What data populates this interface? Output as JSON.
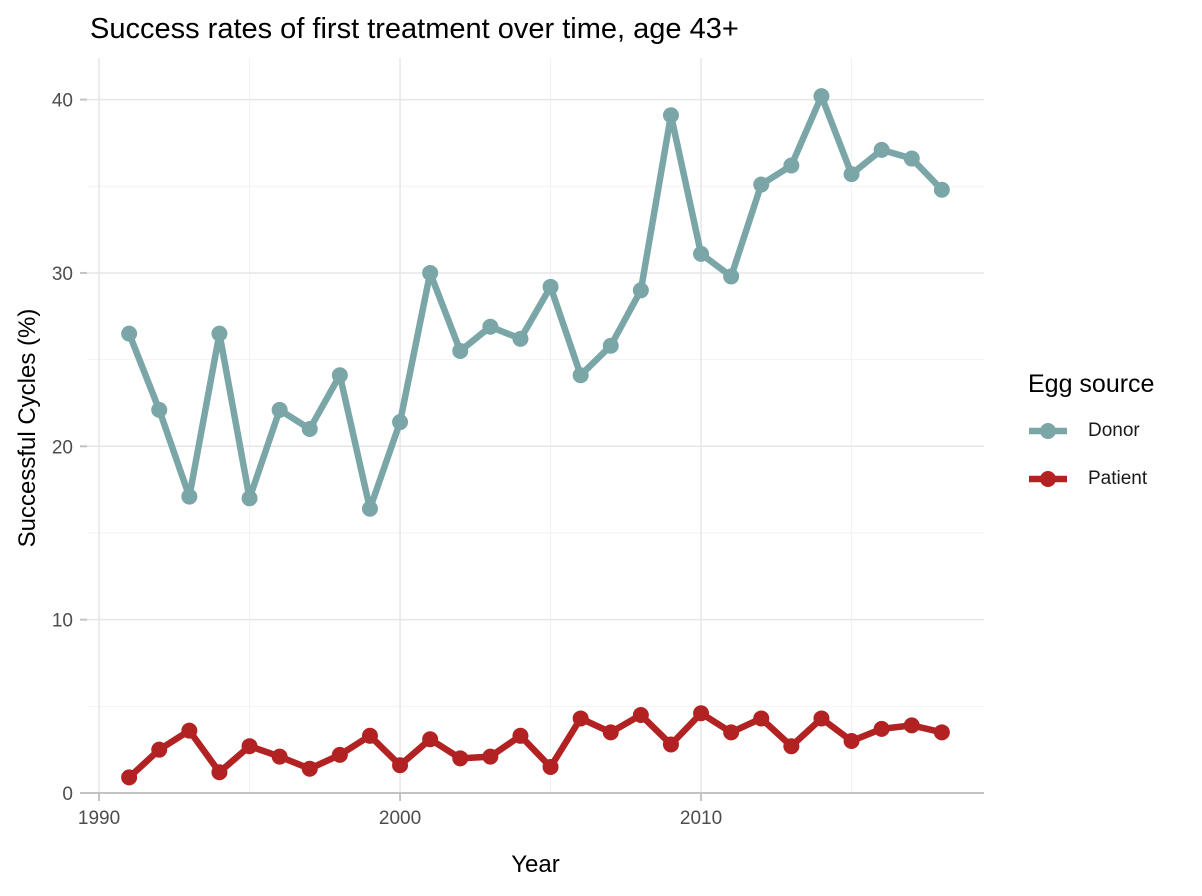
{
  "chart_data": {
    "type": "line",
    "title": "Success rates of first treatment over time, age 43+",
    "xlabel": "Year",
    "ylabel": "Successful Cycles (%)",
    "legend_title": "Egg source",
    "legend_position": "right",
    "grid_on": true,
    "x": [
      1991,
      1992,
      1993,
      1994,
      1995,
      1996,
      1997,
      1998,
      1999,
      2000,
      2001,
      2002,
      2003,
      2004,
      2005,
      2006,
      2007,
      2008,
      2009,
      2010,
      2011,
      2012,
      2013,
      2014,
      2015,
      2016,
      2017,
      2018
    ],
    "series": [
      {
        "name": "Donor",
        "color": "#7AA6A8",
        "values": [
          26.5,
          22.1,
          17.1,
          26.5,
          17.0,
          22.1,
          21.0,
          24.1,
          16.4,
          21.4,
          30.0,
          25.5,
          26.9,
          26.2,
          29.2,
          24.1,
          25.8,
          29.0,
          39.1,
          31.1,
          29.8,
          35.1,
          36.2,
          40.2,
          35.7,
          37.1,
          36.6,
          34.8
        ]
      },
      {
        "name": "Patient",
        "color": "#B22222",
        "values": [
          0.9,
          2.5,
          3.6,
          1.2,
          2.7,
          2.1,
          1.4,
          2.2,
          3.3,
          1.6,
          3.1,
          2.0,
          2.1,
          3.3,
          1.5,
          4.3,
          3.5,
          4.5,
          2.8,
          4.6,
          3.5,
          4.3,
          2.7,
          4.3,
          3.0,
          3.7,
          3.9,
          3.5
        ]
      }
    ],
    "xlim": [
      1989.6,
      2019.4
    ],
    "ylim": [
      0,
      42.4
    ],
    "x_tick_values": [
      1990,
      2000,
      2010
    ],
    "x_tick_labels": [
      "1990",
      "2000",
      "2010"
    ],
    "x_minor_values": [
      1995,
      2005,
      2015
    ],
    "y_tick_values": [
      0,
      10,
      20,
      30,
      40
    ],
    "y_tick_labels": [
      "0",
      "10",
      "20",
      "30",
      "40"
    ],
    "y_minor_values": [
      5,
      15,
      25,
      35
    ]
  },
  "style_colors": {
    "grid_major": "#E6E6E6",
    "grid_minor": "#F2F2F2",
    "axis_line": "#C3C3C3",
    "tick_label": "#4D4D4D"
  }
}
